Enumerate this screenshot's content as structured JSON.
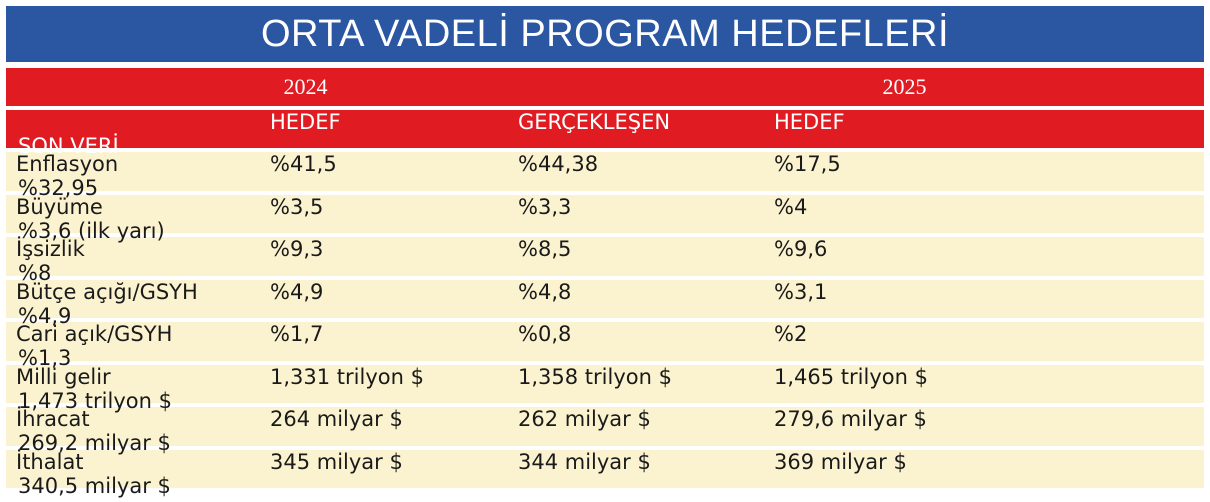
{
  "title": "ORTA VADELİ PROGRAM HEDEFLERİ",
  "years": [
    "2024",
    "2025"
  ],
  "columns": [
    "HEDEF",
    "GERÇEKLEŞEN",
    "HEDEF",
    "SON VERİ"
  ],
  "rows": [
    {
      "label": "Enflasyon",
      "values": [
        "%41,5",
        "%44,38",
        "%17,5",
        "%32,95"
      ]
    },
    {
      "label": "Büyüme",
      "values": [
        "%3,5",
        "%3,3",
        "%4",
        "%3,6 (ilk yarı)"
      ]
    },
    {
      "label": "İşsizlik",
      "values": [
        "%9,3",
        "%8,5",
        "%9,6",
        "%8"
      ]
    },
    {
      "label": "Bütçe açığı/GSYH",
      "values": [
        "%4,9",
        "%4,8",
        "%3,1",
        "%4,9"
      ]
    },
    {
      "label": "Cari açık/GSYH",
      "values": [
        "%1,7",
        "%0,8",
        "%2",
        "%1,3"
      ]
    },
    {
      "label": "Milli gelir",
      "values": [
        "1,331 trilyon $",
        "1,358 trilyon $",
        "1,465 trilyon $",
        "1,473 trilyon $"
      ]
    },
    {
      "label": "İhracat",
      "values": [
        "264 milyar $",
        "262 milyar $",
        "279,6 milyar $",
        "269,2 milyar $"
      ]
    },
    {
      "label": "İthalat",
      "values": [
        "345 milyar $",
        "344 milyar $",
        "369 milyar $",
        "340,5 milyar $"
      ]
    }
  ],
  "colors": {
    "title_bg": "#2a56a2",
    "header_bg": "#e11b22",
    "row_bg": "#fbf3cf"
  },
  "chart_data": {
    "type": "table",
    "title": "ORTA VADELİ PROGRAM HEDEFLERİ",
    "column_groups": [
      {
        "name": "2024",
        "columns": [
          "HEDEF",
          "GERÇEKLEŞEN"
        ]
      },
      {
        "name": "2025",
        "columns": [
          "HEDEF",
          "SON VERİ"
        ]
      }
    ]
  }
}
